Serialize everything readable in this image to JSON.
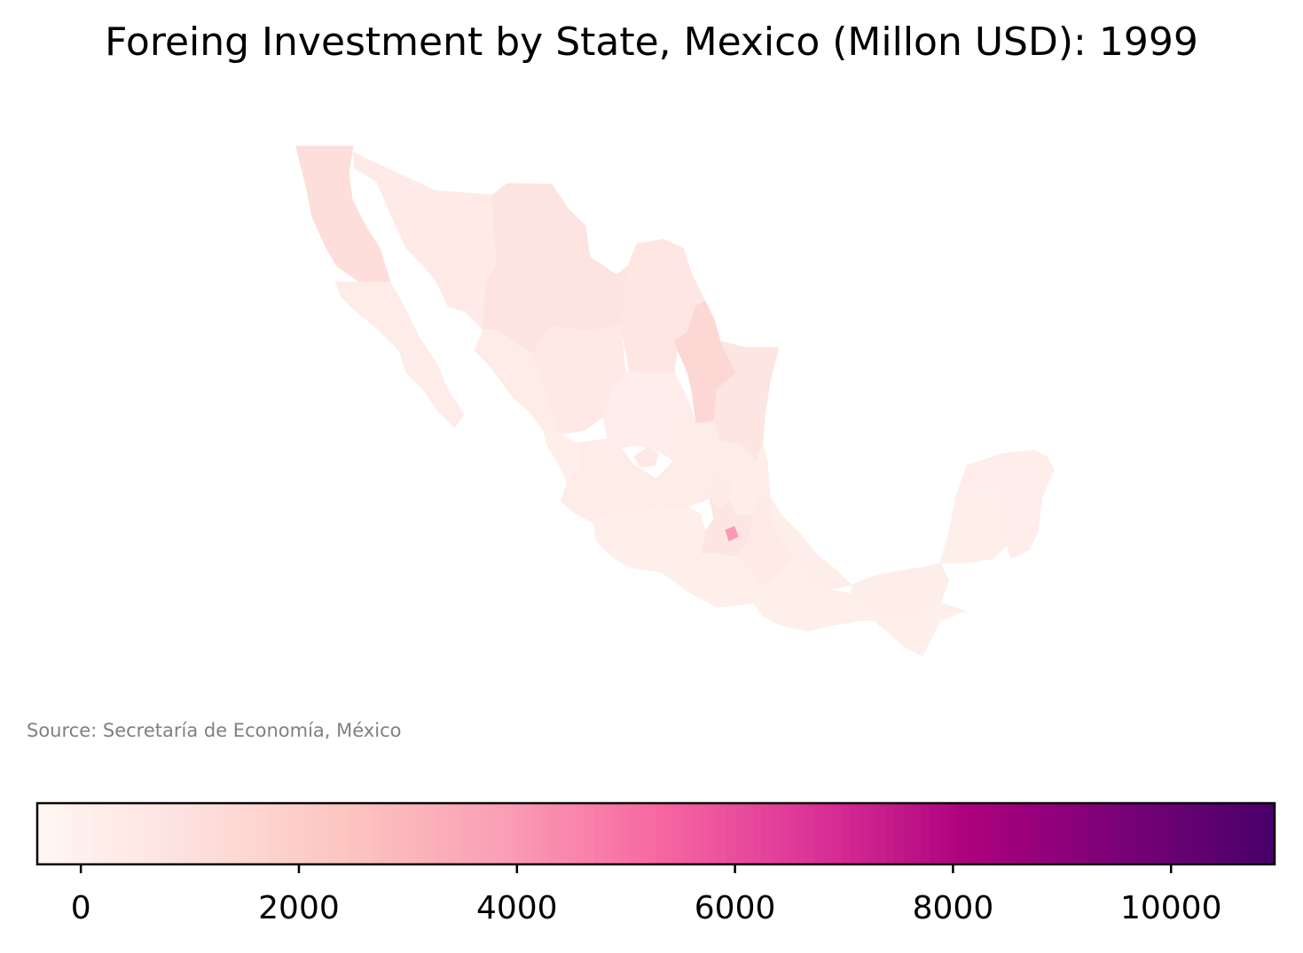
{
  "title": "Foreing Investment by State, Mexico (Millon USD): 1999",
  "source": "Source: Secretaría de Economía, México",
  "colormap": [
    "#fff7f3",
    "#fde0dd",
    "#fcc5c0",
    "#fa9fb5",
    "#f768a1",
    "#dd3497",
    "#ae017e",
    "#7a0177",
    "#49006a"
  ],
  "chart_data": {
    "type": "choropleth",
    "region": "Mexico",
    "colorbar": {
      "vmin": -400,
      "vmax": 10950,
      "ticks": [
        0,
        2000,
        4000,
        6000,
        8000,
        10000
      ],
      "tick_labels": [
        "0",
        "2000",
        "4000",
        "6000",
        "8000",
        "10000"
      ],
      "orientation": "horizontal",
      "placement": "bottom"
    },
    "regions": [
      {
        "name": "Baja California",
        "value": 1100
      },
      {
        "name": "Baja California Sur",
        "value": 300
      },
      {
        "name": "Sonora",
        "value": 400
      },
      {
        "name": "Chihuahua",
        "value": 800
      },
      {
        "name": "Coahuila",
        "value": 650
      },
      {
        "name": "Nuevo León",
        "value": 1500
      },
      {
        "name": "Tamaulipas",
        "value": 700
      },
      {
        "name": "Sinaloa",
        "value": 250
      },
      {
        "name": "Durango",
        "value": 450
      },
      {
        "name": "Zacatecas",
        "value": 200
      },
      {
        "name": "Nayarit",
        "value": 100
      },
      {
        "name": "Jalisco",
        "value": 300
      },
      {
        "name": "Aguascalientes",
        "value": 500
      },
      {
        "name": "San Luis Potosí",
        "value": 300
      },
      {
        "name": "Guanajuato",
        "value": 300
      },
      {
        "name": "Querétaro",
        "value": 350
      },
      {
        "name": "Hidalgo",
        "value": 150
      },
      {
        "name": "Estado de México",
        "value": 700
      },
      {
        "name": "Ciudad de México",
        "value": 4000
      },
      {
        "name": "Michoacán",
        "value": 100
      },
      {
        "name": "Guerrero",
        "value": 100
      },
      {
        "name": "Puebla",
        "value": 400
      },
      {
        "name": "Veracruz",
        "value": 150
      },
      {
        "name": "Oaxaca",
        "value": 100
      },
      {
        "name": "Chiapas",
        "value": 100
      },
      {
        "name": "Tabasco",
        "value": 150
      },
      {
        "name": "Campeche",
        "value": 100
      },
      {
        "name": "Yucatán",
        "value": 200
      },
      {
        "name": "Quintana Roo",
        "value": 200
      }
    ]
  }
}
